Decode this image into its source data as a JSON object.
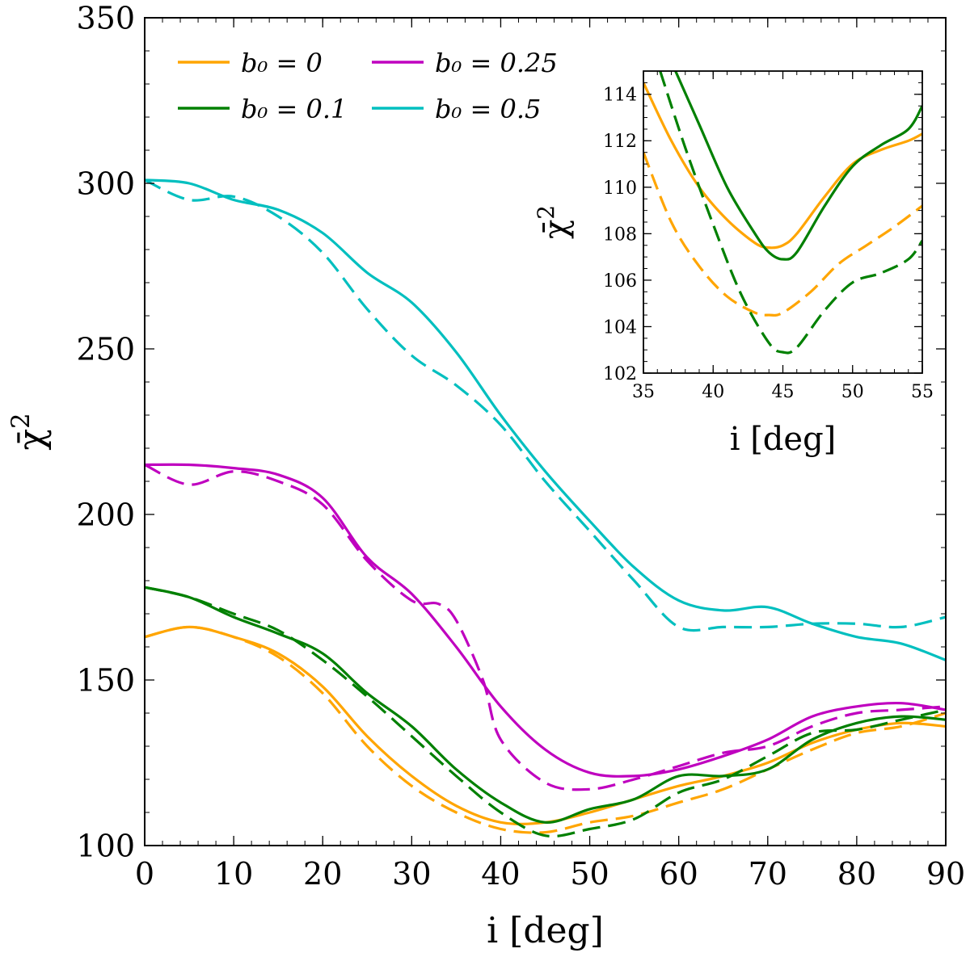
{
  "chart_data": [
    {
      "type": "line",
      "title": "",
      "xlabel": "i [deg]",
      "ylabel": "χ̄²",
      "xlim": [
        0,
        90
      ],
      "ylim": [
        100,
        350
      ],
      "xticks": [
        0,
        10,
        20,
        30,
        40,
        50,
        60,
        70,
        80,
        90
      ],
      "yticks": [
        100,
        150,
        200,
        250,
        300,
        350
      ],
      "legend": {
        "placement": "top-left",
        "entries": [
          {
            "label": "b₀ = 0",
            "color": "#FFA500"
          },
          {
            "label": "b₀ = 0.25",
            "color": "#BF00BF"
          },
          {
            "label": "b₀ = 0.1",
            "color": "#008000"
          },
          {
            "label": "b₀ = 0.5",
            "color": "#00BFBF"
          }
        ]
      },
      "series": [
        {
          "name": "b0=0 solid",
          "color": "#FFA500",
          "dash": false,
          "x": [
            0,
            5,
            10,
            15,
            20,
            25,
            30,
            35,
            40,
            45,
            50,
            55,
            60,
            65,
            70,
            75,
            80,
            85,
            90
          ],
          "y": [
            163,
            166,
            163,
            158,
            148,
            133,
            121,
            112,
            107,
            107,
            110,
            114,
            118,
            121,
            125,
            131,
            135,
            137,
            136
          ]
        },
        {
          "name": "b0=0 dashed",
          "color": "#FFA500",
          "dash": true,
          "x": [
            0,
            5,
            10,
            15,
            20,
            25,
            30,
            35,
            40,
            45,
            50,
            55,
            60,
            65,
            70,
            75,
            80,
            85,
            90
          ],
          "y": [
            163,
            166,
            163,
            157,
            146,
            130,
            118,
            110,
            105,
            104,
            107,
            109,
            113,
            117,
            123,
            129,
            134,
            136,
            140
          ]
        },
        {
          "name": "b0=0.1 solid",
          "color": "#008000",
          "dash": false,
          "x": [
            0,
            5,
            10,
            15,
            20,
            25,
            30,
            35,
            40,
            45,
            50,
            55,
            60,
            65,
            70,
            75,
            80,
            85,
            90
          ],
          "y": [
            178,
            175,
            169,
            164,
            158,
            146,
            136,
            123,
            113,
            107,
            111,
            114,
            121,
            121,
            123,
            132,
            137,
            139,
            138
          ]
        },
        {
          "name": "b0=0.1 dashed",
          "color": "#008000",
          "dash": true,
          "x": [
            0,
            5,
            10,
            15,
            20,
            25,
            30,
            35,
            40,
            45,
            50,
            55,
            60,
            65,
            70,
            75,
            80,
            85,
            90
          ],
          "y": [
            178,
            175,
            170,
            165,
            156,
            145,
            133,
            121,
            110,
            103,
            105,
            108,
            116,
            120,
            127,
            134,
            135,
            138,
            141
          ]
        },
        {
          "name": "b0=0.25 solid",
          "color": "#BF00BF",
          "dash": false,
          "x": [
            0,
            5,
            10,
            15,
            20,
            25,
            30,
            35,
            40,
            45,
            50,
            55,
            60,
            65,
            70,
            75,
            80,
            85,
            90
          ],
          "y": [
            215,
            215,
            214,
            212,
            205,
            187,
            176,
            160,
            142,
            129,
            122,
            121,
            123,
            127,
            132,
            139,
            142,
            143,
            141
          ]
        },
        {
          "name": "b0=0.25 dashed",
          "color": "#BF00BF",
          "dash": true,
          "x": [
            0,
            5,
            10,
            15,
            20,
            25,
            30,
            33,
            35,
            38,
            40,
            45,
            50,
            55,
            60,
            65,
            70,
            75,
            80,
            85,
            90
          ],
          "y": [
            215,
            209,
            213,
            210,
            203,
            186,
            174,
            173,
            168,
            150,
            132,
            119,
            117,
            120,
            124,
            128,
            130,
            136,
            140,
            141,
            142
          ]
        },
        {
          "name": "b0=0.5 solid",
          "color": "#00BFBF",
          "dash": false,
          "x": [
            0,
            5,
            10,
            15,
            20,
            25,
            30,
            35,
            40,
            45,
            50,
            55,
            60,
            65,
            70,
            75,
            80,
            85,
            90
          ],
          "y": [
            301,
            300,
            295,
            292,
            285,
            273,
            264,
            249,
            230,
            213,
            198,
            184,
            174,
            171,
            172,
            167,
            163,
            161,
            156
          ]
        },
        {
          "name": "b0=0.5 dashed",
          "color": "#00BFBF",
          "dash": true,
          "x": [
            0,
            5,
            10,
            15,
            20,
            25,
            30,
            35,
            40,
            45,
            50,
            55,
            60,
            65,
            70,
            75,
            80,
            85,
            90
          ],
          "y": [
            301,
            295,
            296,
            290,
            279,
            262,
            248,
            239,
            227,
            210,
            195,
            180,
            166,
            166,
            166,
            167,
            167,
            166,
            169
          ]
        }
      ]
    },
    {
      "type": "line",
      "title": "",
      "xlabel": "i [deg]",
      "ylabel": "χ̄²",
      "xlim": [
        35,
        55
      ],
      "ylim": [
        102,
        115
      ],
      "xticks": [
        35,
        40,
        45,
        50,
        55
      ],
      "yticks": [
        102,
        104,
        106,
        108,
        110,
        112,
        114
      ],
      "placement": "inset top-right",
      "series": [
        {
          "name": "b0=0 solid",
          "color": "#FFA500",
          "dash": false,
          "x": [
            35,
            37,
            39,
            41,
            43,
            44,
            45,
            46,
            48,
            50,
            52,
            54,
            55
          ],
          "y": [
            114.5,
            112,
            110,
            108.6,
            107.6,
            107.4,
            107.5,
            108,
            109.6,
            111,
            111.6,
            112,
            112.3
          ]
        },
        {
          "name": "b0=0 dashed",
          "color": "#FFA500",
          "dash": true,
          "x": [
            35,
            37,
            39,
            41,
            43,
            44,
            45,
            47,
            49,
            51,
            53,
            55
          ],
          "y": [
            111.5,
            108.5,
            106.6,
            105.3,
            104.6,
            104.5,
            104.6,
            105.5,
            106.7,
            107.5,
            108.3,
            109.2
          ]
        },
        {
          "name": "b0=0.1 solid",
          "color": "#008000",
          "dash": false,
          "x": [
            37.3,
            39,
            41,
            43,
            44,
            45,
            46,
            48,
            50,
            52,
            54,
            55
          ],
          "y": [
            115,
            112.7,
            110,
            108,
            107.2,
            106.9,
            107.2,
            109.2,
            110.9,
            111.8,
            112.5,
            113.5
          ]
        },
        {
          "name": "b0=0.1 dashed",
          "color": "#008000",
          "dash": true,
          "x": [
            36.2,
            38,
            40,
            42,
            44,
            45,
            46,
            48,
            50,
            52,
            54,
            55
          ],
          "y": [
            115,
            111.7,
            108.4,
            105.4,
            103.3,
            102.9,
            103.1,
            104.7,
            105.9,
            106.3,
            106.9,
            107.7
          ]
        }
      ]
    }
  ]
}
